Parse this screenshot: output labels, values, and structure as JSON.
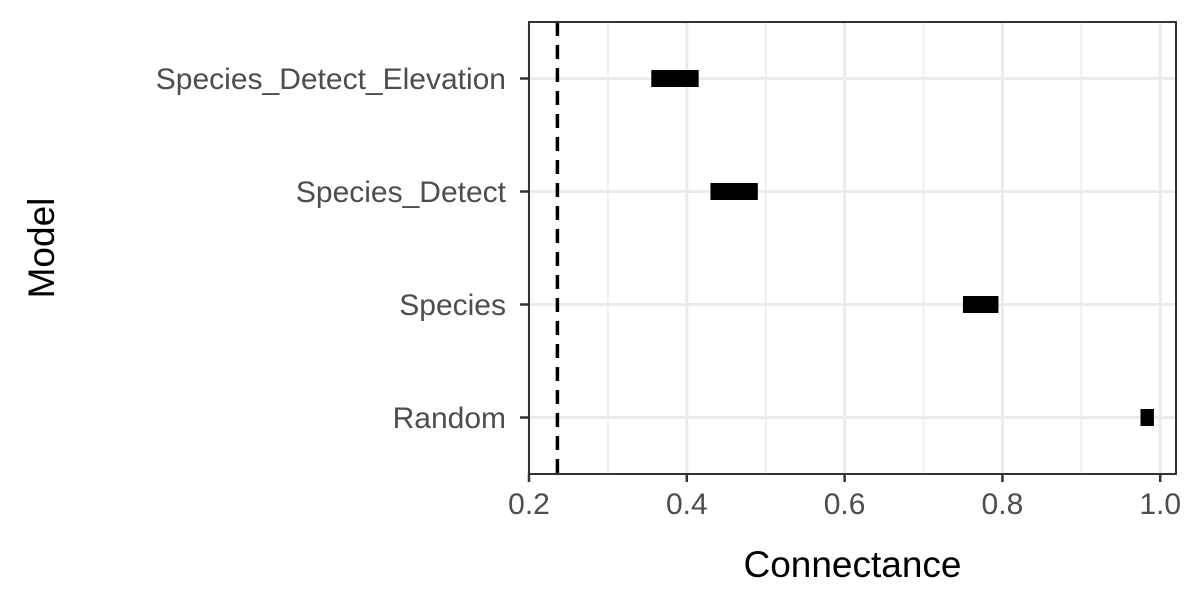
{
  "chart_data": {
    "type": "interval",
    "xlabel": "Connectance",
    "ylabel": "Model",
    "xlim": [
      0.2,
      1.02
    ],
    "x_ticks": [
      0.2,
      0.4,
      0.6,
      0.8,
      1.0
    ],
    "x_tick_labels": [
      "0.2",
      "0.4",
      "0.6",
      "0.8",
      "1.0"
    ],
    "x_minor_ticks": [
      0.3,
      0.5,
      0.7,
      0.9
    ],
    "categories": [
      "Species_Detect_Elevation",
      "Species_Detect",
      "Species",
      "Random"
    ],
    "intervals": [
      {
        "model": "Species_Detect_Elevation",
        "low": 0.355,
        "high": 0.415
      },
      {
        "model": "Species_Detect",
        "low": 0.43,
        "high": 0.49
      },
      {
        "model": "Species",
        "low": 0.75,
        "high": 0.795
      },
      {
        "model": "Random",
        "low": 0.975,
        "high": 0.992
      }
    ],
    "reference_line": {
      "x": 0.236,
      "style": "dashed"
    },
    "grid": true,
    "legend": "none",
    "colors": {
      "interval": "#000000",
      "grid": "#ebebeb",
      "panel_border": "#333333",
      "reference": "#000000"
    }
  }
}
